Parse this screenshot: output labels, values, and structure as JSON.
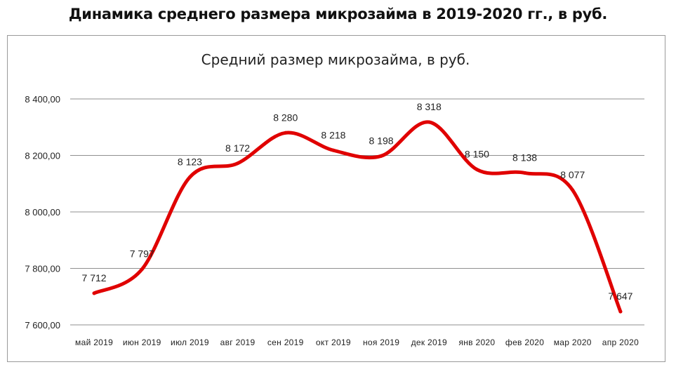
{
  "page": {
    "heading": "Динамика среднего размера микрозайма в 2019-2020 гг., в руб."
  },
  "chart_data": {
    "type": "line",
    "title": "Средний размер микрозайма, в руб.",
    "xlabel": "",
    "ylabel": "",
    "categories": [
      "май 2019",
      "июн 2019",
      "июл 2019",
      "авг 2019",
      "сен 2019",
      "окт 2019",
      "ноя 2019",
      "дек 2019",
      "янв 2020",
      "фев 2020",
      "мар 2020",
      "апр 2020"
    ],
    "series": [
      {
        "values": [
          7712,
          7797,
          8123,
          8172,
          8280,
          8218,
          8198,
          8318,
          8150,
          8138,
          8077,
          7647
        ],
        "data_labels": [
          "7 712",
          "7 797",
          "8 123",
          "8 172",
          "8 280",
          "8 218",
          "8 198",
          "8 318",
          "8 150",
          "8 138",
          "8 077",
          "7 647"
        ],
        "color": "#e00000"
      }
    ],
    "ylim": [
      7600,
      8400
    ],
    "yticks": [
      7600,
      7800,
      8000,
      8200,
      8400
    ],
    "ytick_labels": [
      "7 600,00",
      "7 800,00",
      "8 000,00",
      "8 200,00",
      "8 400,00"
    ],
    "grid": true,
    "smooth": true,
    "legend": "none"
  }
}
